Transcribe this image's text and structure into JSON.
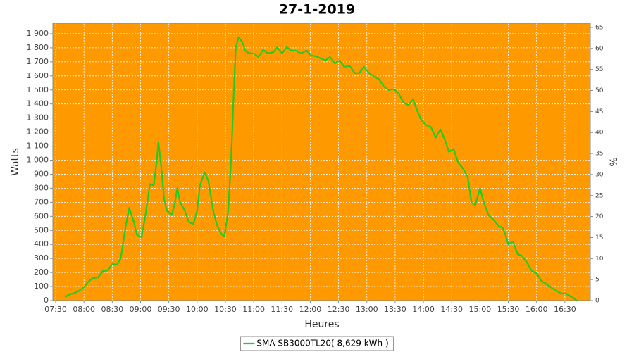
{
  "chart_data": {
    "type": "line",
    "title": "27-1-2019",
    "x_label": "Heures",
    "y_label": "Watts",
    "y2_label": "%",
    "background": "#ff9900",
    "grid": true,
    "legend": "bottom",
    "x": [
      "07:40",
      "07:45",
      "07:49",
      "07:55",
      "08:00",
      "08:04",
      "08:09",
      "08:15",
      "08:20",
      "08:25",
      "08:30",
      "08:35",
      "08:39",
      "08:44",
      "08:48",
      "08:53",
      "08:56",
      "09:01",
      "09:05",
      "09:10",
      "09:14",
      "09:17",
      "09:19",
      "09:22",
      "09:25",
      "09:28",
      "09:33",
      "09:36",
      "09:39",
      "09:42",
      "09:47",
      "09:51",
      "09:56",
      "10:00",
      "10:03",
      "10:08",
      "10:12",
      "10:17",
      "10:21",
      "10:26",
      "10:29",
      "10:33",
      "10:36",
      "10:39",
      "10:41",
      "10:44",
      "10:48",
      "10:51",
      "10:55",
      "11:00",
      "11:05",
      "11:10",
      "11:15",
      "11:21",
      "11:25",
      "11:30",
      "11:35",
      "11:40",
      "11:45",
      "11:50",
      "11:56",
      "12:01",
      "12:06",
      "12:11",
      "12:16",
      "12:21",
      "12:26",
      "12:31",
      "12:36",
      "12:42",
      "12:47",
      "12:52",
      "12:57",
      "13:03",
      "13:08",
      "13:13",
      "13:18",
      "13:23",
      "13:29",
      "13:34",
      "13:39",
      "13:44",
      "13:49",
      "13:53",
      "13:58",
      "14:03",
      "14:08",
      "14:13",
      "14:18",
      "14:23",
      "14:27",
      "14:32",
      "14:37",
      "14:42",
      "14:47",
      "14:51",
      "14:55",
      "15:00",
      "15:04",
      "15:09",
      "15:15",
      "15:20",
      "15:24",
      "15:27",
      "15:30",
      "15:35",
      "15:40",
      "15:44",
      "15:50",
      "15:55",
      "16:00",
      "16:05",
      "16:10",
      "16:15",
      "16:21",
      "16:26",
      "16:31",
      "16:36",
      "16:43"
    ],
    "series": [
      {
        "name": "SMA SB3000TL20( 8,629 kWh )",
        "color": "#22cc22",
        "values": [
          25,
          45,
          50,
          70,
          95,
          130,
          160,
          165,
          210,
          215,
          260,
          255,
          300,
          520,
          660,
          560,
          470,
          450,
          600,
          830,
          820,
          980,
          1130,
          950,
          720,
          640,
          610,
          680,
          800,
          700,
          640,
          560,
          545,
          640,
          820,
          915,
          850,
          640,
          540,
          470,
          460,
          640,
          1000,
          1500,
          1800,
          1875,
          1840,
          1780,
          1760,
          1760,
          1735,
          1785,
          1760,
          1770,
          1805,
          1760,
          1805,
          1780,
          1780,
          1760,
          1780,
          1745,
          1740,
          1725,
          1710,
          1735,
          1690,
          1710,
          1665,
          1670,
          1620,
          1620,
          1665,
          1615,
          1595,
          1575,
          1525,
          1500,
          1505,
          1470,
          1410,
          1390,
          1435,
          1360,
          1280,
          1250,
          1235,
          1160,
          1220,
          1140,
          1060,
          1080,
          980,
          940,
          880,
          700,
          680,
          800,
          700,
          610,
          570,
          530,
          520,
          470,
          400,
          420,
          330,
          320,
          270,
          210,
          195,
          140,
          120,
          95,
          70,
          50,
          50,
          30,
          0
        ]
      }
    ],
    "xlim": [
      "07:27",
      "16:57"
    ],
    "xticks": [
      "07:30",
      "08:00",
      "08:30",
      "09:00",
      "09:30",
      "10:00",
      "10:30",
      "11:00",
      "11:30",
      "12:00",
      "12:30",
      "13:00",
      "13:30",
      "14:00",
      "14:30",
      "15:00",
      "15:30",
      "16:00",
      "16:30"
    ],
    "ylim": [
      0,
      1975
    ],
    "yticks": [
      0,
      100,
      200,
      300,
      400,
      500,
      600,
      700,
      800,
      900,
      {
        "value": 1000,
        "label": "1 000"
      },
      {
        "value": 1100,
        "label": "1 100"
      },
      {
        "value": 1200,
        "label": "1 200"
      },
      {
        "value": 1300,
        "label": "1 300"
      },
      {
        "value": 1400,
        "label": "1 400"
      },
      {
        "value": 1500,
        "label": "1 500"
      },
      {
        "value": 1600,
        "label": "1 600"
      },
      {
        "value": 1700,
        "label": "1 700"
      },
      {
        "value": 1800,
        "label": "1 800"
      },
      {
        "value": 1900,
        "label": "1 900"
      }
    ],
    "y2lim": [
      0,
      66
    ],
    "y2ticks": [
      0,
      5,
      10,
      15,
      20,
      25,
      30,
      35,
      40,
      45,
      50,
      55,
      60,
      65
    ]
  }
}
